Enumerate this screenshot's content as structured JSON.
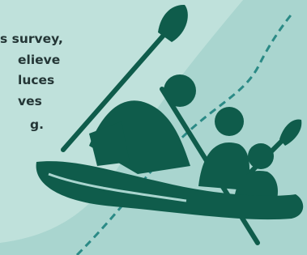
{
  "text_lines": [
    "s survey,",
    "elieve",
    "luces",
    "ves",
    "g."
  ]
}
